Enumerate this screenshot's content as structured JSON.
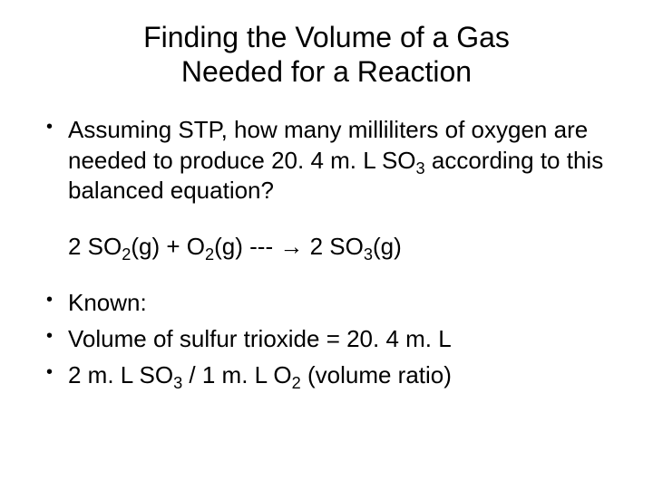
{
  "title_line1": "Finding the Volume of a Gas",
  "title_line2": "Needed for a Reaction",
  "bullet1_prefix": "Assuming STP, how many milliliters of oxygen are needed to produce 20. 4 m. L SO",
  "bullet1_sub": "3",
  "bullet1_suffix": " according to this balanced equation?",
  "eq_parts": {
    "p1": "2 SO",
    "s1": "2",
    "p2": "(g) + O",
    "s2": "2",
    "p3": "(g) --- ",
    "arrow": "→",
    "p4": " 2 SO",
    "s3": "3",
    "p5": "(g)"
  },
  "bullet2": "Known:",
  "bullet3": "Volume of sulfur trioxide = 20. 4 m. L",
  "bullet4_prefix": "2 m. L SO",
  "bullet4_sub1": "3",
  "bullet4_mid": " / 1 m. L O",
  "bullet4_sub2": "2",
  "bullet4_suffix": " (volume ratio)",
  "colors": {
    "background": "#ffffff",
    "text": "#000000"
  },
  "fonts": {
    "title_size": 32,
    "body_size": 26
  }
}
